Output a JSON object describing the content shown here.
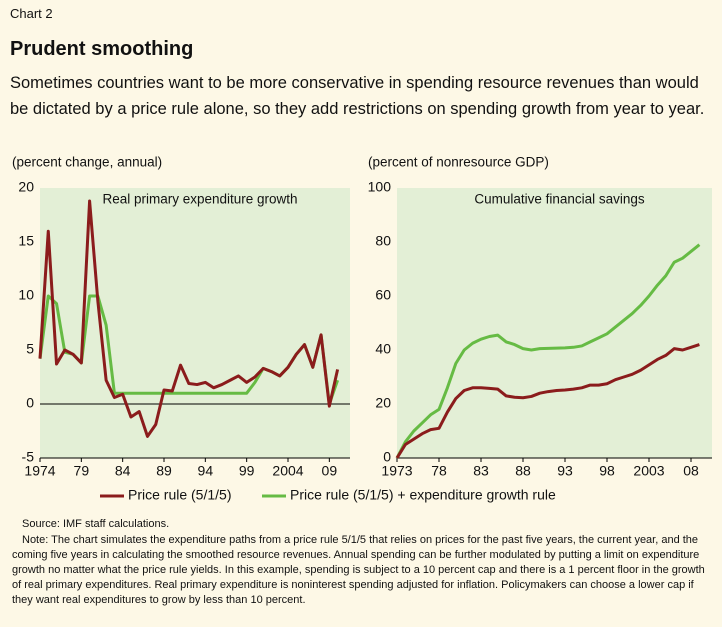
{
  "header": {
    "label": "Chart 2",
    "title": "Prudent smoothing",
    "subtitle": "Sometimes countries want to be more conservative in spending resource revenues than would be dictated by a price rule alone, so they add restrictions on spending growth from year to year."
  },
  "chart_data": [
    {
      "type": "line",
      "title": "Real primary expenditure growth",
      "y_label": "(percent change, annual)",
      "x": [
        1974,
        1975,
        1976,
        1977,
        1978,
        1979,
        1980,
        1981,
        1982,
        1983,
        1984,
        1985,
        1986,
        1987,
        1988,
        1989,
        1990,
        1991,
        1992,
        1993,
        1994,
        1995,
        1996,
        1997,
        1998,
        1999,
        2000,
        2001,
        2002,
        2003,
        2004,
        2005,
        2006,
        2007,
        2008,
        2009,
        2010
      ],
      "series": [
        {
          "name": "Price rule (5/1/5)",
          "color": "#8b1c1c",
          "values": [
            4.2,
            16,
            3.7,
            5,
            4.6,
            3.8,
            18.8,
            9.5,
            2.2,
            0.6,
            0.9,
            -1.2,
            -0.7,
            -3,
            -1.9,
            1.3,
            1.2,
            3.6,
            1.9,
            1.8,
            2,
            1.5,
            1.8,
            2.2,
            2.6,
            2,
            2.5,
            3.3,
            3,
            2.6,
            3.4,
            4.6,
            5.5,
            3.4,
            6.4,
            -0.2,
            3.2
          ]
        },
        {
          "name": "Price rule (5/1/5) + expenditure growth rule",
          "color": "#66bb44",
          "values": [
            4.2,
            10,
            9.3,
            4.8,
            4.6,
            3.8,
            10,
            10,
            7.3,
            1,
            1,
            1,
            1,
            1,
            1,
            1,
            1,
            1,
            1,
            1,
            1,
            1,
            1,
            1,
            1,
            1,
            2,
            3.3,
            3,
            2.6,
            3.4,
            4.6,
            5.5,
            3.4,
            6.4,
            0,
            2.2
          ]
        }
      ],
      "xlim": [
        1974,
        2011.5
      ],
      "xticks": [
        1974,
        {
          "value": 1979,
          "label": "79"
        },
        {
          "value": 1984,
          "label": "84"
        },
        {
          "value": 1989,
          "label": "89"
        },
        {
          "value": 1994,
          "label": "94"
        },
        {
          "value": 1999,
          "label": "99"
        },
        2004,
        {
          "value": 2009,
          "label": "09"
        }
      ],
      "ylim": [
        -5,
        20
      ],
      "yticks": [
        -5,
        0,
        5,
        10,
        15,
        20
      ],
      "zero_line": true
    },
    {
      "type": "line",
      "title": "Cumulative financial savings",
      "y_label": "(percent of nonresource GDP)",
      "x": [
        1973,
        1974,
        1975,
        1976,
        1977,
        1978,
        1979,
        1980,
        1981,
        1982,
        1983,
        1984,
        1985,
        1986,
        1987,
        1988,
        1989,
        1990,
        1991,
        1992,
        1993,
        1994,
        1995,
        1996,
        1997,
        1998,
        1999,
        2000,
        2001,
        2002,
        2003,
        2004,
        2005,
        2006,
        2007,
        2008,
        2009
      ],
      "series": [
        {
          "color": "#8b1c1c",
          "values": [
            0,
            5,
            7,
            9,
            10.5,
            11,
            17,
            22,
            25,
            26,
            26,
            25.8,
            25.5,
            23,
            22.5,
            22.3,
            22.8,
            24,
            24.6,
            25,
            25.2,
            25.5,
            26,
            27,
            27,
            27.5,
            29,
            30,
            31,
            32.5,
            34.5,
            36.5,
            38,
            40.5,
            40,
            41,
            42
          ]
        },
        {
          "color": "#66bb44",
          "values": [
            0,
            6,
            10,
            13,
            16,
            18,
            26,
            35,
            40,
            42.5,
            44,
            45,
            45.5,
            43,
            42,
            40.5,
            40,
            40.5,
            40.6,
            40.7,
            40.8,
            41,
            41.5,
            43,
            44.5,
            46,
            48.5,
            51,
            53.5,
            56.5,
            60,
            64,
            67.5,
            72.5,
            74,
            76.5,
            79
          ]
        }
      ],
      "xlim": [
        1973,
        2010.5
      ],
      "xticks": [
        1973,
        {
          "value": 1978,
          "label": "78"
        },
        {
          "value": 1983,
          "label": "83"
        },
        {
          "value": 1988,
          "label": "88"
        },
        {
          "value": 1993,
          "label": "93"
        },
        {
          "value": 1998,
          "label": "98"
        },
        2003,
        {
          "value": 2008,
          "label": "08"
        }
      ],
      "ylim": [
        0,
        100
      ],
      "yticks": [
        0,
        20,
        40,
        60,
        80,
        100
      ],
      "zero_line": false
    }
  ],
  "footer": {
    "source": "Source: IMF staff calculations.",
    "note": "Note: The chart simulates the expenditure paths from a price rule 5/1/5 that relies on prices for the past five years, the current year, and the coming five years in calculating the smoothed resource revenues. Annual spending can be further modulated by putting a limit on expenditure growth no matter what the price rule yields. In this example, spending is subject to a 10 percent cap and there is a 1 percent floor in the growth of real primary expenditures. Real primary expenditure is noninterest spending adjusted for inflation. Policymakers can choose a lower cap if they want real expenditures to grow by less than 10 percent."
  }
}
